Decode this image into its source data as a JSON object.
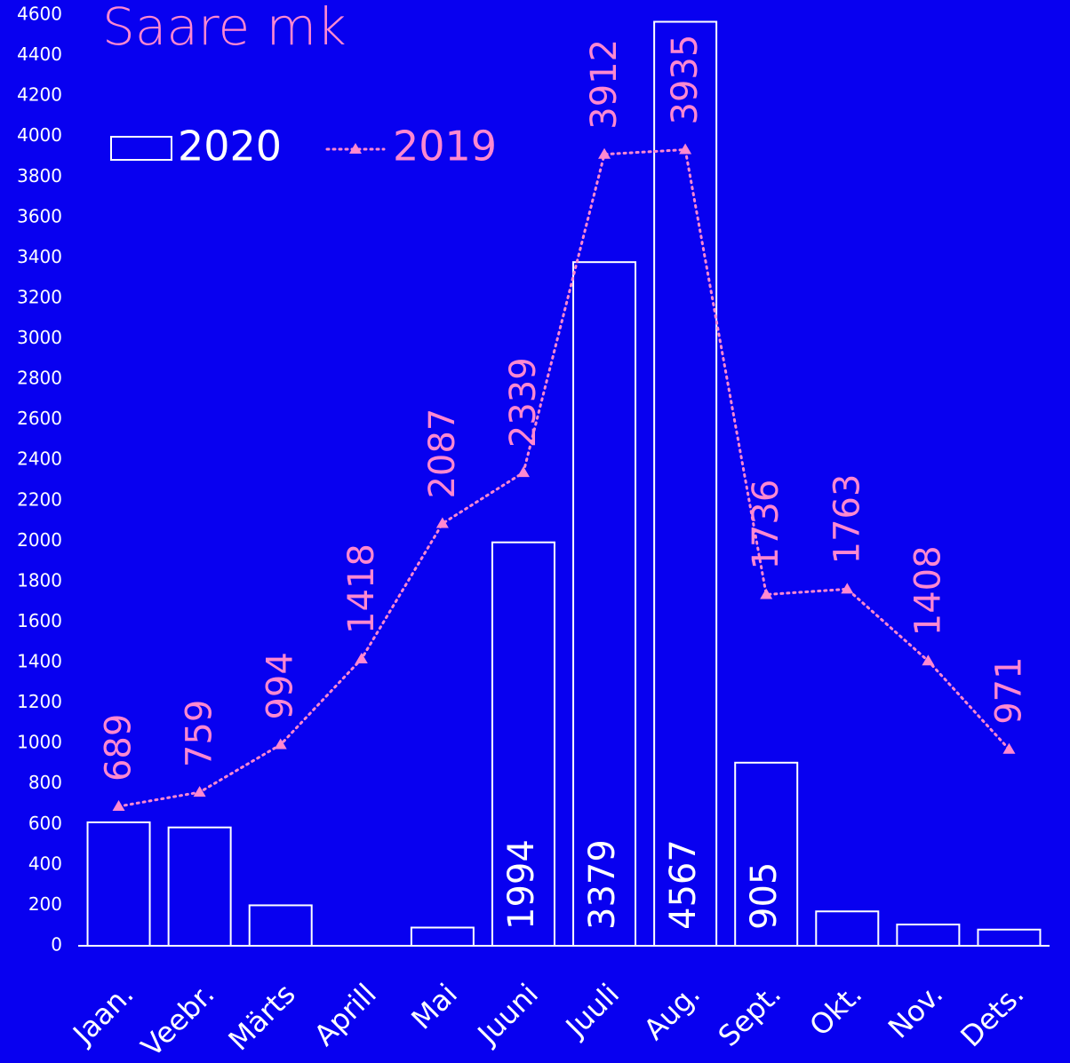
{
  "chart_data": {
    "type": "bar",
    "title": "Saare mk",
    "categories": [
      "Jaan.",
      "Veebr.",
      "Märts",
      "Aprill",
      "Mai",
      "Juuni",
      "Juuli",
      "Aug.",
      "Sept.",
      "Okt.",
      "Nov.",
      "Dets."
    ],
    "series": [
      {
        "name": "2020",
        "type": "bar",
        "color": "#ffffff",
        "values": [
          610,
          585,
          200,
          0,
          90,
          1994,
          3379,
          4567,
          905,
          170,
          105,
          80
        ],
        "value_labels": [
          null,
          null,
          null,
          null,
          null,
          "1994",
          "3379",
          "4567",
          "905",
          null,
          null,
          null
        ]
      },
      {
        "name": "2019",
        "type": "line",
        "color": "#ff88d0",
        "values": [
          689,
          759,
          994,
          1418,
          2087,
          2339,
          3912,
          3935,
          1736,
          1763,
          1408,
          971
        ]
      }
    ],
    "ylim": [
      0,
      4600
    ],
    "yticks": [
      0,
      200,
      400,
      600,
      800,
      1000,
      1200,
      1400,
      1600,
      1800,
      2000,
      2200,
      2400,
      2600,
      2800,
      3000,
      3200,
      3400,
      3600,
      3800,
      4000,
      4200,
      4400,
      4600
    ],
    "grid": false,
    "legend": "top-left"
  }
}
